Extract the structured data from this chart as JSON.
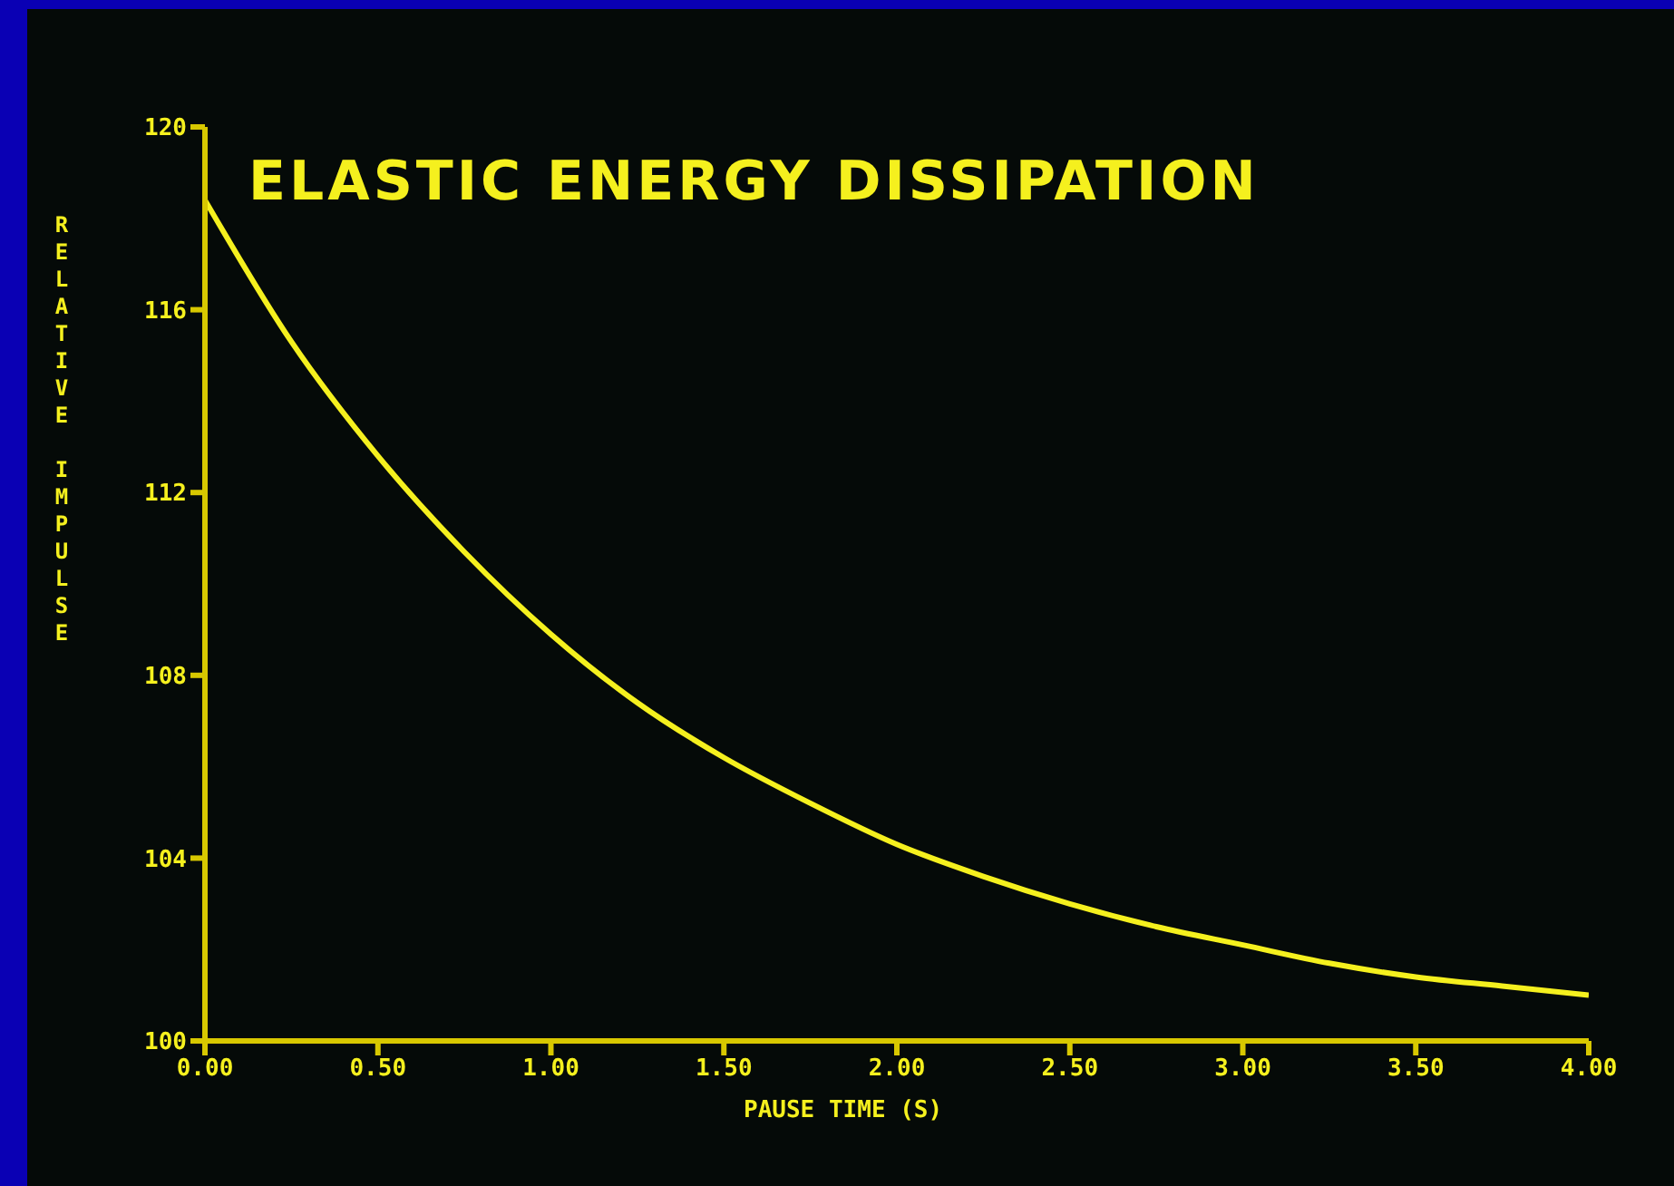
{
  "chart_data": {
    "type": "line",
    "title": "ELASTIC ENERGY DISSIPATION",
    "xlabel": "PAUSE TIME (S)",
    "ylabel": "RELATIVE IMPULSE",
    "x": [
      0,
      0.25,
      0.5,
      0.75,
      1,
      1.25,
      1.5,
      1.75,
      2,
      2.25,
      2.5,
      2.75,
      3,
      3.25,
      3.5,
      3.75,
      4
    ],
    "series": [
      {
        "color": "#f5f01e",
        "values": [
          118.4,
          115.3,
          112.8,
          110.7,
          108.9,
          107.4,
          106.2,
          105.2,
          104.3,
          103.6,
          103.0,
          102.5,
          102.1,
          101.7,
          101.4,
          101.2,
          101.0
        ]
      }
    ],
    "xlim": [
      0,
      4
    ],
    "xticks": [
      {
        "value": 0,
        "label": "0.00"
      },
      {
        "value": 0.5,
        "label": "0.50"
      },
      {
        "value": 1,
        "label": "1.00"
      },
      {
        "value": 1.5,
        "label": "1.50"
      },
      {
        "value": 2,
        "label": "2.00"
      },
      {
        "value": 2.5,
        "label": "2.50"
      },
      {
        "value": 3,
        "label": "3.00"
      },
      {
        "value": 3.5,
        "label": "3.50"
      },
      {
        "value": 4,
        "label": "4.00"
      }
    ],
    "ylim": [
      100,
      120
    ],
    "yticks": [
      100,
      104,
      108,
      112,
      116,
      120
    ],
    "marker": "none"
  }
}
